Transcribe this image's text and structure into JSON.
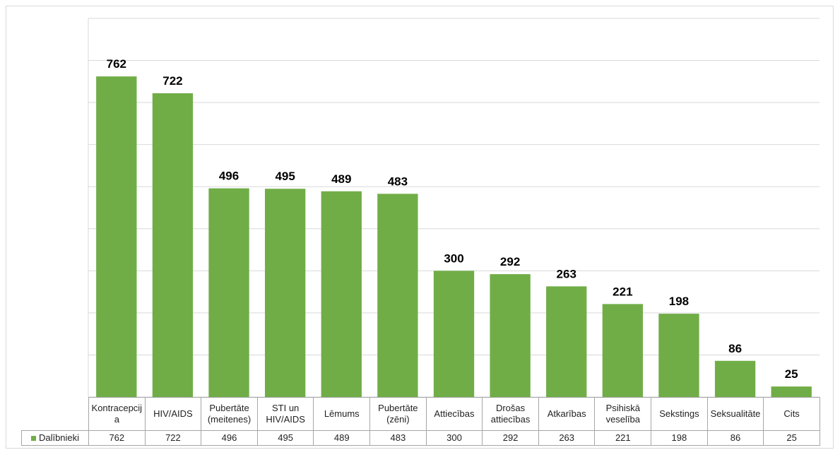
{
  "chart_data": {
    "type": "bar",
    "categories": [
      "Kontracepcija",
      "HIV/AIDS",
      "Pubertāte (meitenes)",
      "STI un HIV/AIDS",
      "Lēmums",
      "Pubertāte (zēni)",
      "Attiecības",
      "Drošas attiecības",
      "Atkarības",
      "Psihiskā veselība",
      "Sekstings",
      "Seksualitāte",
      "Cits"
    ],
    "series": [
      {
        "name": "Dalībnieki",
        "color": "#70ad47",
        "values": [
          762,
          722,
          496,
          495,
          489,
          483,
          300,
          292,
          263,
          221,
          198,
          86,
          25
        ]
      }
    ],
    "ylim": [
      0,
      900
    ],
    "yticks": [
      0,
      100,
      200,
      300,
      400,
      500,
      600,
      700,
      800,
      900
    ],
    "grid": true
  }
}
